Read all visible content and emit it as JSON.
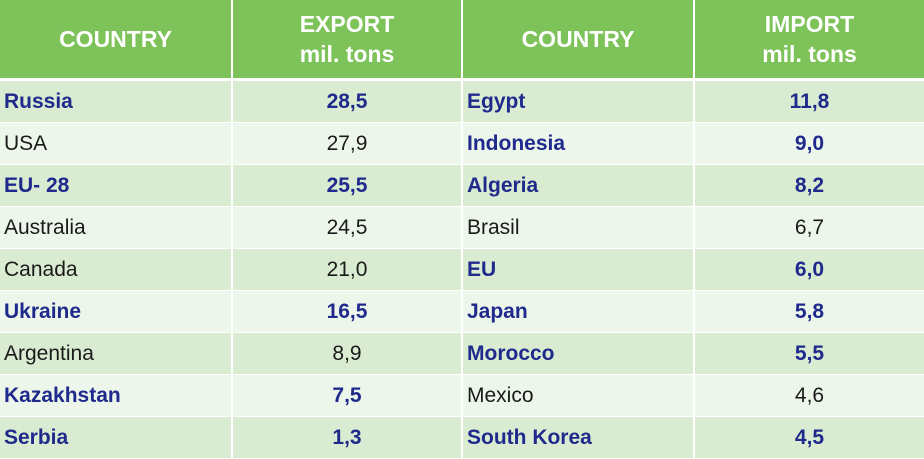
{
  "header": {
    "col1": "COUNTRY",
    "col2_line1": "EXPORT",
    "col2_line2": "mil. tons",
    "col3": "COUNTRY",
    "col4_line1": "IMPORT",
    "col4_line2": "mil. tons"
  },
  "colors": {
    "header_bg": "#7dc35a",
    "row_dark": "#d9ecd2",
    "row_light": "#edf6ea",
    "highlight_text": "#1f2a8c"
  },
  "rows": [
    {
      "export_country": "Russia",
      "export_value": "28,5",
      "export_bold": true,
      "import_country": "Egypt",
      "import_value": "11,8",
      "import_bold": true
    },
    {
      "export_country": "USA",
      "export_value": "27,9",
      "export_bold": false,
      "import_country": "Indonesia",
      "import_value": "9,0",
      "import_bold": true
    },
    {
      "export_country": "EU- 28",
      "export_value": "25,5",
      "export_bold": true,
      "import_country": "Algeria",
      "import_value": "8,2",
      "import_bold": true
    },
    {
      "export_country": "Australia",
      "export_value": "24,5",
      "export_bold": false,
      "import_country": "Brasil",
      "import_value": "6,7",
      "import_bold": false
    },
    {
      "export_country": "Canada",
      "export_value": "21,0",
      "export_bold": false,
      "import_country": "EU",
      "import_value": "6,0",
      "import_bold": true
    },
    {
      "export_country": "Ukraine",
      "export_value": "16,5",
      "export_bold": true,
      "import_country": "Japan",
      "import_value": "5,8",
      "import_bold": true
    },
    {
      "export_country": "Argentina",
      "export_value": "8,9",
      "export_bold": false,
      "import_country": "Morocco",
      "import_value": "5,5",
      "import_bold": true
    },
    {
      "export_country": "Kazakhstan",
      "export_value": "7,5",
      "export_bold": true,
      "import_country": "Mexico",
      "import_value": "4,6",
      "import_bold": false
    },
    {
      "export_country": "Serbia",
      "export_value": "1,3",
      "export_bold": true,
      "import_country": "South Korea",
      "import_value": "4,5",
      "import_bold": true
    }
  ]
}
